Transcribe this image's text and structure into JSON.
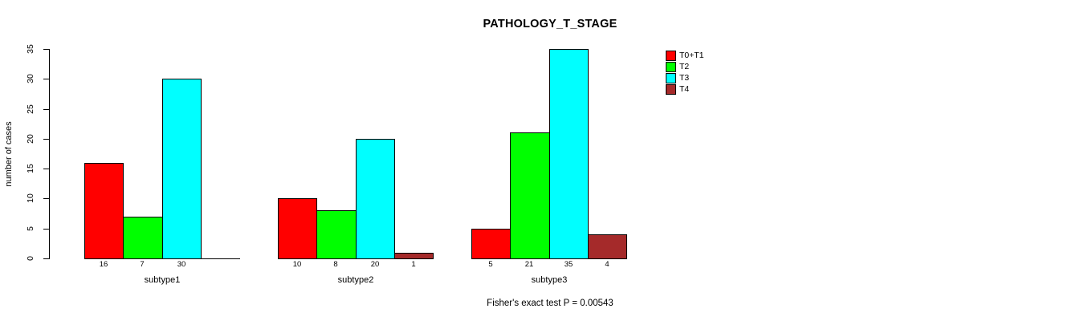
{
  "chart_data": {
    "type": "bar",
    "title": "PATHOLOGY_T_STAGE",
    "ylabel": "number of cases",
    "xlabel": "",
    "ylim": [
      0,
      35
    ],
    "yticks": [
      0,
      5,
      10,
      15,
      20,
      25,
      30,
      35
    ],
    "categories": [
      "subtype1",
      "subtype2",
      "subtype3"
    ],
    "series": [
      {
        "name": "T0+T1",
        "color": "#ff0000",
        "values": [
          16,
          10,
          5
        ]
      },
      {
        "name": "T2",
        "color": "#00ff00",
        "values": [
          7,
          8,
          21
        ]
      },
      {
        "name": "T3",
        "color": "#00ffff",
        "values": [
          30,
          20,
          35
        ]
      },
      {
        "name": "T4",
        "color": "#a52a2a",
        "values": [
          0,
          1,
          4
        ]
      }
    ],
    "bar_value_labels": [
      [
        "16",
        "7",
        "30",
        ""
      ],
      [
        "10",
        "8",
        "20",
        "1"
      ],
      [
        "5",
        "21",
        "35",
        "4"
      ]
    ],
    "annotation": "Fisher's exact test P = 0.00543",
    "legend_position": "right",
    "grid": false,
    "axis_color": "#000000",
    "bar_border_color": "#000000"
  }
}
